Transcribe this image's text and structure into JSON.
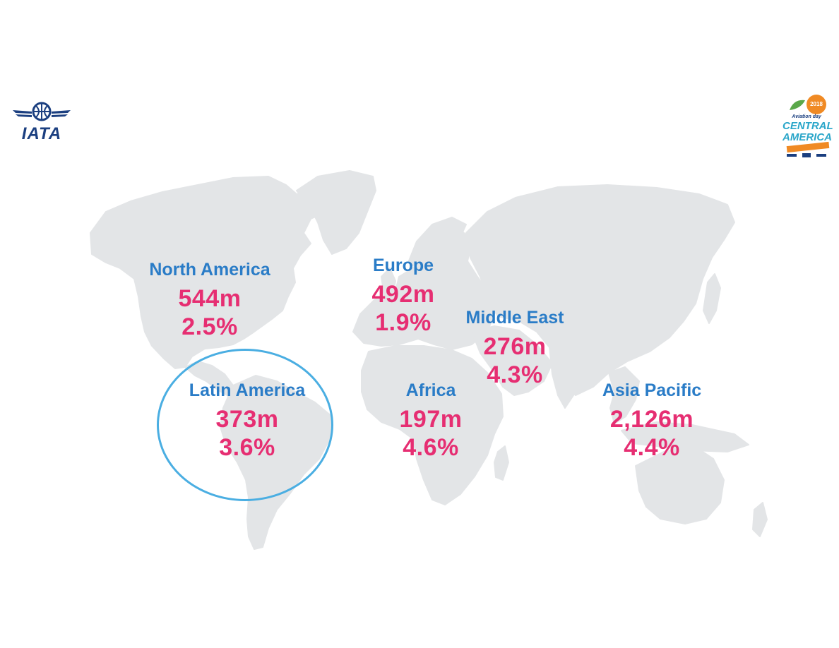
{
  "logos": {
    "iata": {
      "text": "IATA",
      "color": "#1b3f80"
    },
    "event": {
      "year": "2018",
      "subtitle": "Aviation day",
      "line1": "CENTRAL",
      "line2": "AMERICA",
      "accent_color": "#f08a24",
      "text_color": "#2aa6c9"
    }
  },
  "colors": {
    "land": "#e3e5e7",
    "region_name": "#2a7cc7",
    "region_value": "#e62e72",
    "highlight": "#4aaee2"
  },
  "highlighted_region": "Latin America",
  "regions": [
    {
      "id": "north-america",
      "name": "North America",
      "value": "544m",
      "growth": "2.5%"
    },
    {
      "id": "europe",
      "name": "Europe",
      "value": "492m",
      "growth": "1.9%"
    },
    {
      "id": "middle-east",
      "name": "Middle East",
      "value": "276m",
      "growth": "4.3%"
    },
    {
      "id": "latin-america",
      "name": "Latin America",
      "value": "373m",
      "growth": "3.6%"
    },
    {
      "id": "africa",
      "name": "Africa",
      "value": "197m",
      "growth": "4.6%"
    },
    {
      "id": "asia-pacific",
      "name": "Asia Pacific",
      "value": "2,126m",
      "growth": "4.4%"
    }
  ]
}
